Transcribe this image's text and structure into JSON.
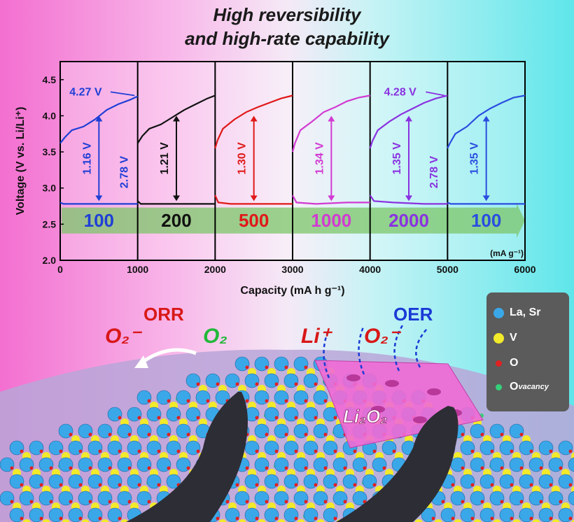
{
  "title_line1": "High reversibility",
  "title_line2": "and high-rate capability",
  "chart_data": {
    "type": "line",
    "xlabel": "Capacity (mA h g⁻¹)",
    "ylabel": "Voltage (V vs. Li/Li⁺)",
    "xlim": [
      0,
      6000
    ],
    "ylim": [
      2.0,
      4.75
    ],
    "xticks": [
      "0",
      "1000",
      "2000",
      "3000",
      "4000",
      "5000",
      "6000"
    ],
    "yticks": [
      "2.0",
      "2.5",
      "3.0",
      "3.5",
      "4.0",
      "4.5"
    ],
    "current_unit": "(mA g⁻¹)",
    "segments": [
      {
        "rate": "100",
        "color": "#1f3fd6",
        "gap": "1.16 V",
        "discharge": [
          [
            0,
            2.8
          ],
          [
            40,
            2.78
          ],
          [
            200,
            2.78
          ],
          [
            600,
            2.78
          ],
          [
            1000,
            2.78
          ]
        ],
        "charge": [
          [
            0,
            3.62
          ],
          [
            60,
            3.7
          ],
          [
            150,
            3.8
          ],
          [
            300,
            3.85
          ],
          [
            450,
            3.95
          ],
          [
            600,
            4.08
          ],
          [
            750,
            4.16
          ],
          [
            900,
            4.22
          ],
          [
            1000,
            4.27
          ]
        ]
      },
      {
        "rate": "200",
        "color": "#111111",
        "gap": "1.21 V",
        "discharge": [
          [
            1000,
            2.82
          ],
          [
            1040,
            2.78
          ],
          [
            1200,
            2.78
          ],
          [
            1600,
            2.78
          ],
          [
            2000,
            2.78
          ]
        ],
        "charge": [
          [
            1000,
            3.62
          ],
          [
            1060,
            3.72
          ],
          [
            1150,
            3.82
          ],
          [
            1300,
            3.88
          ],
          [
            1450,
            3.98
          ],
          [
            1600,
            4.08
          ],
          [
            1750,
            4.16
          ],
          [
            1900,
            4.24
          ],
          [
            2000,
            4.28
          ]
        ]
      },
      {
        "rate": "500",
        "color": "#e01818",
        "gap": "1.30 V",
        "discharge": [
          [
            2000,
            2.9
          ],
          [
            2040,
            2.8
          ],
          [
            2200,
            2.78
          ],
          [
            2600,
            2.78
          ],
          [
            3000,
            2.78
          ]
        ],
        "charge": [
          [
            2000,
            3.55
          ],
          [
            2030,
            3.66
          ],
          [
            2100,
            3.82
          ],
          [
            2250,
            3.95
          ],
          [
            2400,
            4.05
          ],
          [
            2550,
            4.12
          ],
          [
            2700,
            4.18
          ],
          [
            2850,
            4.24
          ],
          [
            3000,
            4.28
          ]
        ]
      },
      {
        "rate": "1000",
        "color": "#d23ad2",
        "gap": "1.34 V",
        "discharge": [
          [
            3000,
            2.9
          ],
          [
            3050,
            2.8
          ],
          [
            3300,
            2.78
          ],
          [
            3700,
            2.8
          ],
          [
            4000,
            2.8
          ]
        ],
        "charge": [
          [
            3000,
            3.5
          ],
          [
            3030,
            3.62
          ],
          [
            3100,
            3.8
          ],
          [
            3250,
            3.92
          ],
          [
            3400,
            4.05
          ],
          [
            3550,
            4.12
          ],
          [
            3700,
            4.2
          ],
          [
            3850,
            4.25
          ],
          [
            4000,
            4.28
          ]
        ]
      },
      {
        "rate": "2000",
        "color": "#8a32e0",
        "gap": "1.35 V",
        "discharge": [
          [
            4000,
            2.9
          ],
          [
            4050,
            2.82
          ],
          [
            4300,
            2.8
          ],
          [
            4700,
            2.78
          ],
          [
            5000,
            2.78
          ]
        ],
        "charge": [
          [
            4000,
            3.55
          ],
          [
            4030,
            3.65
          ],
          [
            4100,
            3.8
          ],
          [
            4250,
            3.92
          ],
          [
            4400,
            4.02
          ],
          [
            4550,
            4.1
          ],
          [
            4700,
            4.18
          ],
          [
            4850,
            4.24
          ],
          [
            5000,
            4.28
          ]
        ]
      },
      {
        "rate": "100",
        "color": "#2a4de0",
        "gap": "1.35 V",
        "discharge": [
          [
            5000,
            2.8
          ],
          [
            5040,
            2.78
          ],
          [
            5300,
            2.78
          ],
          [
            5700,
            2.78
          ],
          [
            6000,
            2.78
          ]
        ],
        "charge": [
          [
            5000,
            3.55
          ],
          [
            5030,
            3.62
          ],
          [
            5100,
            3.75
          ],
          [
            5250,
            3.85
          ],
          [
            5400,
            4.0
          ],
          [
            5550,
            4.1
          ],
          [
            5700,
            4.18
          ],
          [
            5850,
            4.25
          ],
          [
            6000,
            4.28
          ]
        ]
      }
    ],
    "annotations": [
      {
        "text": "4.27 V",
        "color": "#1f3fd6"
      },
      {
        "text": "2.78 V",
        "color": "#1f3fd6"
      },
      {
        "text": "4.28 V",
        "color": "#8a32e0"
      },
      {
        "text": "2.78 V",
        "color": "#8a32e0"
      }
    ]
  },
  "scene": {
    "orr_label": "ORR",
    "oer_label": "OER",
    "o2_minus_left": "O₂⁻",
    "o2_label": "O₂",
    "li_label": "Li⁺",
    "o2_minus_right": "O₂⁻",
    "li2o2_label": "Li₂O₂"
  },
  "legend": {
    "items": [
      {
        "label": "La, Sr",
        "color": "#3aa8e8"
      },
      {
        "label": "V",
        "color": "#f2ea2a"
      },
      {
        "label": "O",
        "color": "#e02020"
      },
      {
        "label": "O",
        "sub": "vacancy",
        "color": "#35d07a"
      }
    ]
  }
}
